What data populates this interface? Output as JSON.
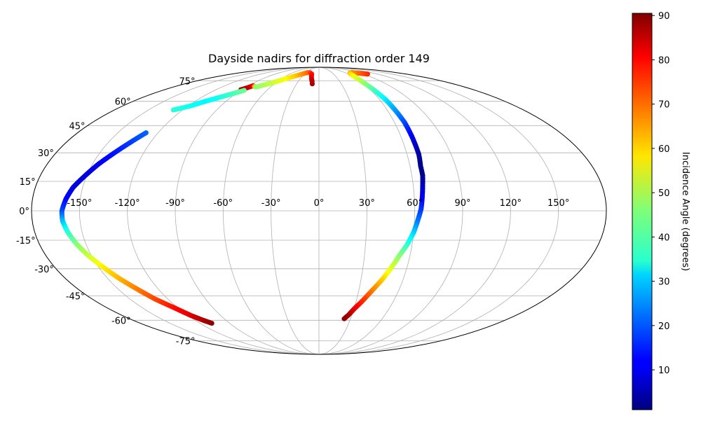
{
  "chart_data": {
    "type": "scatter",
    "projection": "mollweide",
    "title": "Dayside nadirs for diffraction order 149",
    "grid": true,
    "lon_ticks": [
      -150,
      -120,
      -90,
      -60,
      -30,
      0,
      30,
      60,
      90,
      120,
      150
    ],
    "lat_ticks": [
      -75,
      -60,
      -45,
      -30,
      -15,
      0,
      15,
      30,
      45,
      60,
      75
    ],
    "lon_tick_labels": [
      "-150°",
      "-120°",
      "-90°",
      "-60°",
      "-30°",
      "0°",
      "30°",
      "60°",
      "90°",
      "120°",
      "150°"
    ],
    "lat_tick_labels": [
      "-75°",
      "-60°",
      "-45°",
      "-30°",
      "-15°",
      "0°",
      "15°",
      "30°",
      "45°",
      "60°",
      "75°"
    ],
    "colorbar": {
      "label": "Incidence Angle (degrees)",
      "range": [
        1,
        90.5
      ],
      "ticks": [
        10,
        20,
        30,
        40,
        50,
        60,
        70,
        80,
        90
      ],
      "tick_labels": [
        "10",
        "20",
        "30",
        "40",
        "50",
        "60",
        "70",
        "80",
        "90"
      ],
      "colormap": "jet"
    },
    "series": [
      {
        "points": [
          {
            "lon": -91,
            "lat": 68,
            "c": 87
          },
          {
            "lon": -87,
            "lat": 69.5,
            "c": 85
          },
          {
            "lon": -84,
            "lat": 71,
            "c": 82
          },
          {
            "lon": -78,
            "lat": 70,
            "c": 47
          },
          {
            "lon": -70,
            "lat": 72,
            "c": 50
          },
          {
            "lon": -62,
            "lat": 74,
            "c": 53
          },
          {
            "lon": -54,
            "lat": 76.5,
            "c": 56
          },
          {
            "lon": -44,
            "lat": 79,
            "c": 61
          },
          {
            "lon": -32,
            "lat": 81.5,
            "c": 67
          },
          {
            "lon": -26,
            "lat": 82.5,
            "c": 70
          },
          {
            "lon": -20,
            "lat": 82.3,
            "c": 74
          },
          {
            "lon": -15,
            "lat": 81,
            "c": 78
          },
          {
            "lon": -12,
            "lat": 77,
            "c": 82
          },
          {
            "lon": -10,
            "lat": 74.5,
            "c": 85
          },
          {
            "lon": -9,
            "lat": 72.5,
            "c": 87
          }
        ]
      },
      {
        "points": [
          {
            "lon": -128,
            "lat": 54.5,
            "c": 38
          },
          {
            "lon": -118,
            "lat": 57,
            "c": 36
          },
          {
            "lon": -110,
            "lat": 60,
            "c": 34
          },
          {
            "lon": -102,
            "lat": 62.5,
            "c": 36
          },
          {
            "lon": -94,
            "lat": 65,
            "c": 40
          },
          {
            "lon": -86,
            "lat": 67.5,
            "c": 44
          }
        ]
      },
      {
        "points": [
          {
            "lon": -129,
            "lat": 41,
            "c": 21
          },
          {
            "lon": -134,
            "lat": 36,
            "c": 18
          },
          {
            "lon": -140,
            "lat": 30,
            "c": 14
          },
          {
            "lon": -146,
            "lat": 24,
            "c": 11
          },
          {
            "lon": -151,
            "lat": 18,
            "c": 9
          },
          {
            "lon": -156,
            "lat": 12,
            "c": 9
          },
          {
            "lon": -159,
            "lat": 6,
            "c": 12
          },
          {
            "lon": -161,
            "lat": 0,
            "c": 18
          },
          {
            "lon": -161,
            "lat": -5,
            "c": 28
          },
          {
            "lon": -159,
            "lat": -11,
            "c": 38
          },
          {
            "lon": -156,
            "lat": -17,
            "c": 46
          },
          {
            "lon": -152,
            "lat": -23,
            "c": 52
          },
          {
            "lon": -147,
            "lat": -29,
            "c": 58
          },
          {
            "lon": -142,
            "lat": -35,
            "c": 63
          },
          {
            "lon": -136,
            "lat": -41,
            "c": 68
          },
          {
            "lon": -130,
            "lat": -47,
            "c": 73
          },
          {
            "lon": -123,
            "lat": -52,
            "c": 78
          },
          {
            "lon": -117,
            "lat": -57,
            "c": 82
          },
          {
            "lon": -112,
            "lat": -60,
            "c": 86
          },
          {
            "lon": -108,
            "lat": -62,
            "c": 89
          }
        ]
      },
      {
        "points": [
          {
            "lon": 100,
            "lat": 81,
            "c": 76
          },
          {
            "lon": 92,
            "lat": 81.5,
            "c": 73
          },
          {
            "lon": 84,
            "lat": 82,
            "c": 70
          },
          {
            "lon": 76,
            "lat": 82.5,
            "c": 67
          },
          {
            "lon": 69,
            "lat": 82,
            "c": 64
          },
          {
            "lon": 65,
            "lat": 81,
            "c": 60
          },
          {
            "lon": 62,
            "lat": 78,
            "c": 55
          },
          {
            "lon": 62,
            "lat": 73,
            "c": 48
          },
          {
            "lon": 64,
            "lat": 67,
            "c": 40
          },
          {
            "lon": 66,
            "lat": 61,
            "c": 33
          },
          {
            "lon": 67,
            "lat": 54,
            "c": 26
          },
          {
            "lon": 68,
            "lat": 47,
            "c": 19
          },
          {
            "lon": 68,
            "lat": 41,
            "c": 13
          },
          {
            "lon": 68,
            "lat": 35,
            "c": 8
          },
          {
            "lon": 68,
            "lat": 29,
            "c": 4
          },
          {
            "lon": 67,
            "lat": 23,
            "c": 2
          },
          {
            "lon": 67,
            "lat": 18,
            "c": 2
          },
          {
            "lon": 66,
            "lat": 13,
            "c": 6
          },
          {
            "lon": 65,
            "lat": 7,
            "c": 11
          },
          {
            "lon": 64,
            "lat": 1,
            "c": 16
          },
          {
            "lon": 62,
            "lat": -5,
            "c": 22
          },
          {
            "lon": 60,
            "lat": -11,
            "c": 30
          },
          {
            "lon": 57,
            "lat": -17,
            "c": 38
          },
          {
            "lon": 53,
            "lat": -23,
            "c": 46
          },
          {
            "lon": 49,
            "lat": -30,
            "c": 54
          },
          {
            "lon": 45,
            "lat": -36,
            "c": 61
          },
          {
            "lon": 40,
            "lat": -42,
            "c": 68
          },
          {
            "lon": 35,
            "lat": -48,
            "c": 75
          },
          {
            "lon": 30,
            "lat": -53,
            "c": 81
          },
          {
            "lon": 27,
            "lat": -56.5,
            "c": 86
          },
          {
            "lon": 24,
            "lat": -59,
            "c": 89
          }
        ]
      }
    ]
  }
}
